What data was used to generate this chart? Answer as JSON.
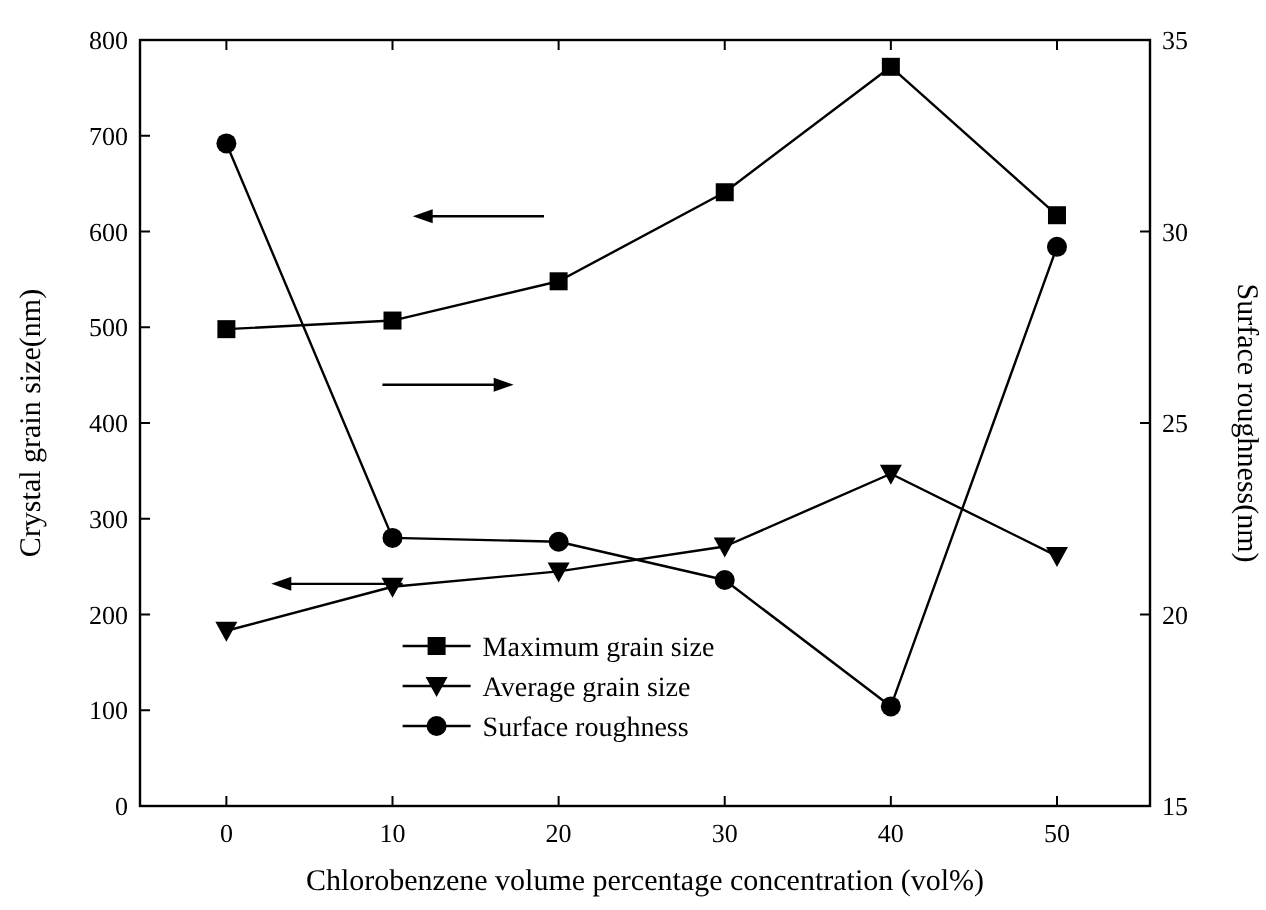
{
  "chart_data": {
    "type": "line",
    "xlabel": "Chlorobenzene volume percentage concentration (vol%)",
    "ylabel": "Crystal grain size(nm)",
    "y2label": "Surface roughness(nm)",
    "x": [
      0,
      10,
      20,
      30,
      40,
      50
    ],
    "xlim": [
      -5.2,
      55.6
    ],
    "xticks": [
      0,
      10,
      20,
      30,
      40,
      50
    ],
    "ylim": [
      0,
      800
    ],
    "yticks": [
      0,
      100,
      200,
      300,
      400,
      500,
      600,
      700,
      800
    ],
    "y2lim": [
      15,
      35
    ],
    "y2ticks": [
      15,
      20,
      25,
      30,
      35
    ],
    "legend": "bottom",
    "grid": false,
    "series": [
      {
        "name": "Maximum grain size",
        "color": "#000000",
        "marker": "square",
        "values": [
          498,
          507,
          548,
          641,
          772,
          617
        ]
      },
      {
        "name": "Average grain size",
        "color": "#000000",
        "marker": "triangle",
        "values": [
          183,
          229,
          245,
          271,
          347,
          261
        ]
      },
      {
        "name": "Surface roughness",
        "color": "#000000",
        "marker": "circle",
        "axis": "y2",
        "values": [
          32.3,
          22.0,
          21.9,
          20.9,
          17.6,
          29.6
        ]
      }
    ]
  }
}
